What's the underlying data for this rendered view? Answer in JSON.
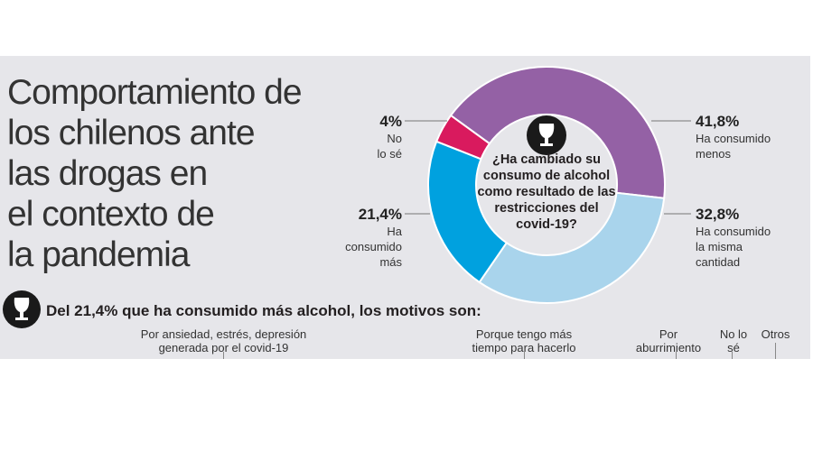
{
  "title_lines": [
    "Comportamiento de",
    "los chilenos ante",
    "las drogas en",
    "el contexto de",
    "la pandemia"
  ],
  "chart_data": {
    "type": "pie",
    "donut": true,
    "title": "¿Ha cambiado su consumo de alcohol como resultado de las restricciones del covid-19?",
    "slices": [
      {
        "label": "Ha consumido menos",
        "value": 41.8,
        "display": "41,8%",
        "color": "#9461a5"
      },
      {
        "label": "Ha consumido la misma cantidad",
        "value": 32.8,
        "display": "32,8%",
        "color": "#a9d4ec"
      },
      {
        "label": "Ha consumido más",
        "value": 21.4,
        "display": "21,4%",
        "color": "#00a1df"
      },
      {
        "label": "No lo sé",
        "value": 4,
        "display": "4%",
        "color": "#d91a5e"
      }
    ]
  },
  "labels": {
    "menos": [
      "Ha consumido",
      "menos"
    ],
    "misma": [
      "Ha consumido",
      "la misma",
      "cantidad"
    ],
    "mas": [
      "Ha",
      "consumido",
      "más"
    ],
    "nose": [
      "No",
      "lo sé"
    ]
  },
  "subhead": "Del 21,4% que ha consumido más alcohol, los motivos son:",
  "motives": [
    [
      "Por ansiedad, estrés, depresión",
      "generada por el covid-19"
    ],
    [
      "Porque tengo más",
      "tiempo para hacerlo"
    ],
    [
      "Por",
      "aburrimiento"
    ],
    [
      "No lo",
      "sé"
    ],
    [
      "Otros"
    ]
  ]
}
